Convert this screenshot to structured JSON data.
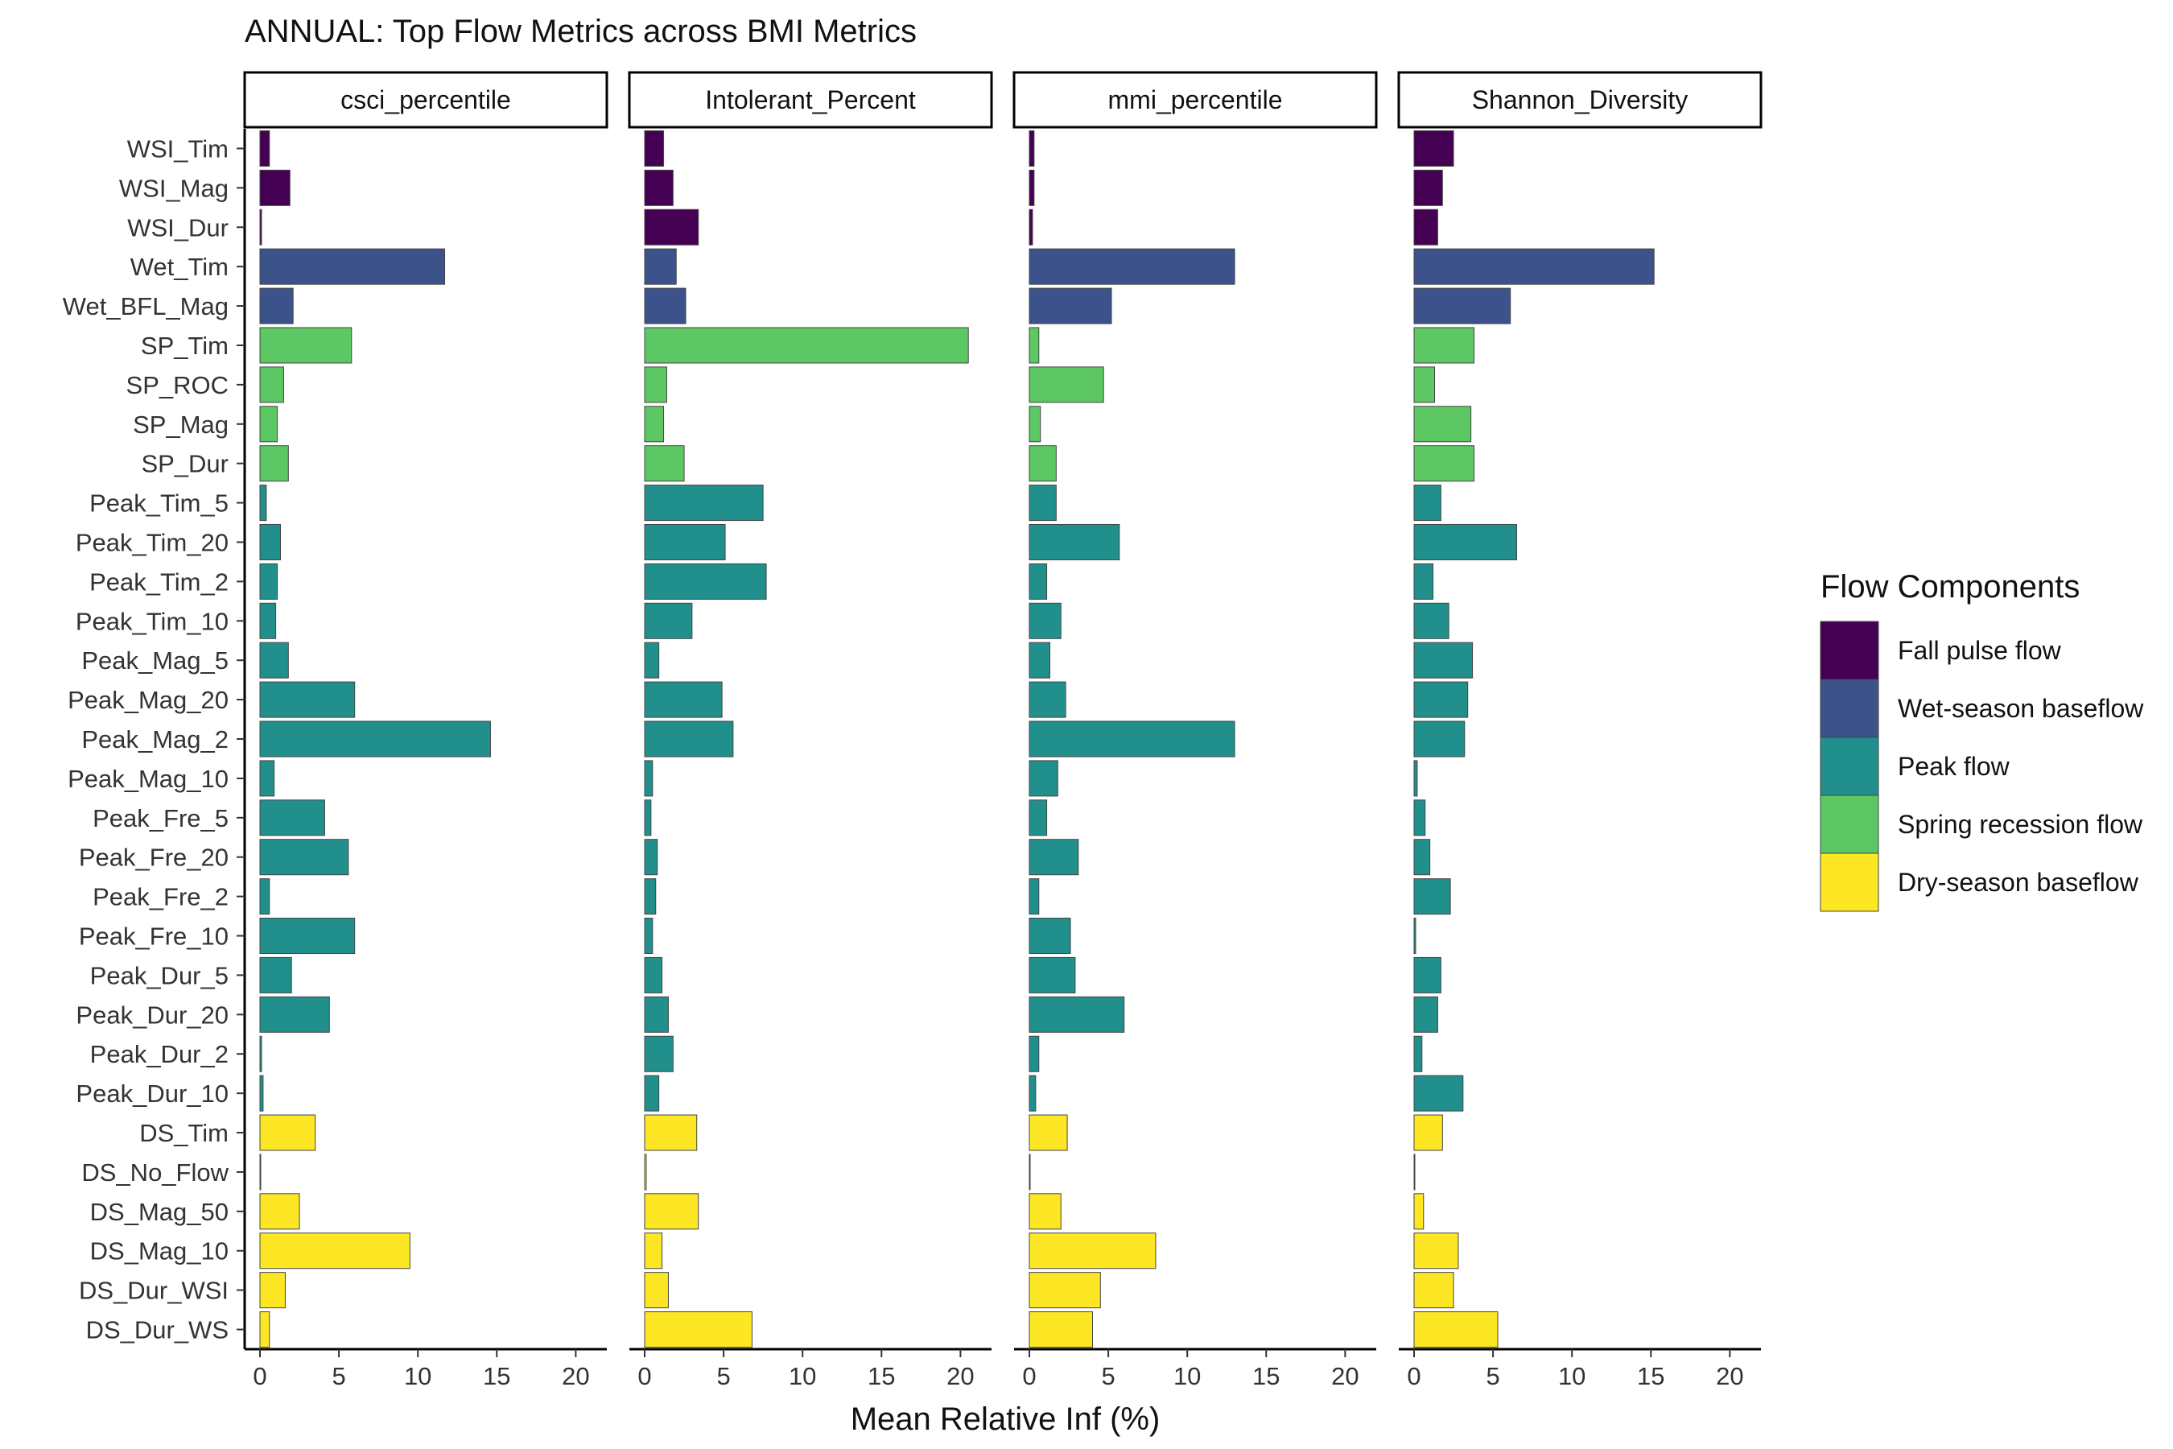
{
  "chart_data": {
    "type": "bar",
    "orientation": "horizontal",
    "title": "ANNUAL: Top Flow Metrics across BMI Metrics",
    "xlabel": "Mean Relative Inf (%)",
    "ylabel": "",
    "xlim": [
      0,
      21
    ],
    "xticks": [
      0,
      5,
      10,
      15,
      20
    ],
    "grid": false,
    "legend": {
      "title": "Flow Components",
      "position": "right",
      "items": [
        {
          "key": "fall",
          "label": "Fall pulse flow",
          "color": "#440154"
        },
        {
          "key": "wet",
          "label": "Wet-season baseflow",
          "color": "#3b528b"
        },
        {
          "key": "peak",
          "label": "Peak flow",
          "color": "#21908c"
        },
        {
          "key": "spring",
          "label": "Spring recession flow",
          "color": "#5dc863"
        },
        {
          "key": "dry",
          "label": "Dry-season baseflow",
          "color": "#fde725"
        }
      ]
    },
    "categories": [
      "WSI_Tim",
      "WSI_Mag",
      "WSI_Dur",
      "Wet_Tim",
      "Wet_BFL_Mag",
      "SP_Tim",
      "SP_ROC",
      "SP_Mag",
      "SP_Dur",
      "Peak_Tim_5",
      "Peak_Tim_20",
      "Peak_Tim_2",
      "Peak_Tim_10",
      "Peak_Mag_5",
      "Peak_Mag_20",
      "Peak_Mag_2",
      "Peak_Mag_10",
      "Peak_Fre_5",
      "Peak_Fre_20",
      "Peak_Fre_2",
      "Peak_Fre_10",
      "Peak_Dur_5",
      "Peak_Dur_20",
      "Peak_Dur_2",
      "Peak_Dur_10",
      "DS_Tim",
      "DS_No_Flow",
      "DS_Mag_50",
      "DS_Mag_10",
      "DS_Dur_WSI",
      "DS_Dur_WS"
    ],
    "category_components": [
      "fall",
      "fall",
      "fall",
      "wet",
      "wet",
      "spring",
      "spring",
      "spring",
      "spring",
      "peak",
      "peak",
      "peak",
      "peak",
      "peak",
      "peak",
      "peak",
      "peak",
      "peak",
      "peak",
      "peak",
      "peak",
      "peak",
      "peak",
      "peak",
      "peak",
      "dry",
      "dry",
      "dry",
      "dry",
      "dry",
      "dry"
    ],
    "panels": [
      {
        "name": "csci_percentile",
        "values": [
          0.6,
          1.9,
          0.1,
          11.7,
          2.1,
          5.8,
          1.5,
          1.1,
          1.8,
          0.4,
          1.3,
          1.1,
          1.0,
          1.8,
          6.0,
          14.6,
          0.9,
          4.1,
          5.6,
          0.6,
          6.0,
          2.0,
          4.4,
          0.1,
          0.2,
          3.5,
          0.05,
          2.5,
          9.5,
          1.6,
          0.6
        ]
      },
      {
        "name": "Intolerant_Percent",
        "values": [
          1.2,
          1.8,
          3.4,
          2.0,
          2.6,
          20.5,
          1.4,
          1.2,
          2.5,
          7.5,
          5.1,
          7.7,
          3.0,
          0.9,
          4.9,
          5.6,
          0.5,
          0.4,
          0.8,
          0.7,
          0.5,
          1.1,
          1.5,
          1.8,
          0.9,
          3.3,
          0.1,
          3.4,
          1.1,
          1.5,
          6.8
        ]
      },
      {
        "name": "mmi_percentile",
        "values": [
          0.3,
          0.3,
          0.2,
          13.0,
          5.2,
          0.6,
          4.7,
          0.7,
          1.7,
          1.7,
          5.7,
          1.1,
          2.0,
          1.3,
          2.3,
          13.0,
          1.8,
          1.1,
          3.1,
          0.6,
          2.6,
          2.9,
          6.0,
          0.6,
          0.4,
          2.4,
          0.05,
          2.0,
          8.0,
          4.5,
          4.0
        ]
      },
      {
        "name": "Shannon_Diversity",
        "values": [
          2.5,
          1.8,
          1.5,
          15.2,
          6.1,
          3.8,
          1.3,
          3.6,
          3.8,
          1.7,
          6.5,
          1.2,
          2.2,
          3.7,
          3.4,
          3.2,
          0.2,
          0.7,
          1.0,
          2.3,
          0.1,
          1.7,
          1.5,
          0.5,
          3.1,
          1.8,
          0.05,
          0.6,
          2.8,
          2.5,
          5.3
        ]
      }
    ]
  }
}
